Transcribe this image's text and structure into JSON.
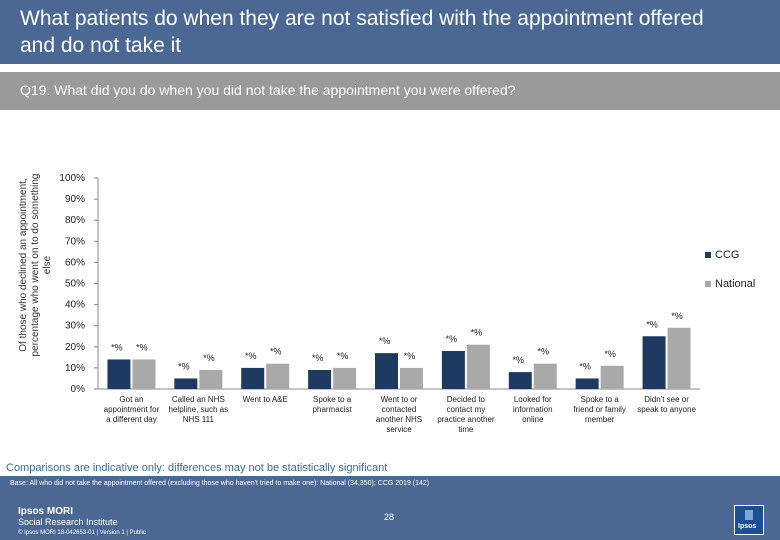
{
  "title": "What patients do when they are not satisfied with the appointment offered and do not take it",
  "question": "Q19. What did you do when you did not take the appointment you were offered?",
  "note": "Comparisons are indicative only: differences may not be statistically significant",
  "base_note": "Base: All who did not take the appointment offered (excluding those who haven't tried to make one): National (34,350); CCG 2019 (142)",
  "footer": {
    "logo_line1": "Ipsos MORI",
    "logo_line2": "Social Research Institute",
    "copyright": "© Ipsos MORI    18-042653-01 | Version 1 | Public",
    "page_number": "28",
    "brand_mark": "Ipsos"
  },
  "colors": {
    "ccg": "#1f3a60",
    "national": "#a9a9a9",
    "header": "#4a6893",
    "question_bar": "#9a9a9a",
    "note_text": "#3a6aa0"
  },
  "chart_data": {
    "type": "bar",
    "ylabel": "Of those who declined an appointment, percentage who went on to do something else",
    "ylim": [
      0,
      100
    ],
    "yticks": [
      "0%",
      "10%",
      "20%",
      "30%",
      "40%",
      "50%",
      "60%",
      "70%",
      "80%",
      "90%",
      "100%"
    ],
    "categories": [
      "Got an appointment for a different day",
      "Called an NHS helpline, such as NHS 111",
      "Went to A&E",
      "Spoke to a pharmacist",
      "Went to or contacted another NHS service",
      "Decided to contact my practice another time",
      "Looked for information online",
      "Spoke to a friend or family member",
      "Didn't see or speak to anyone"
    ],
    "category_lines": [
      [
        "Got an",
        "appointment for",
        "a different day"
      ],
      [
        "Called an NHS",
        "helpline, such as",
        "NHS 111"
      ],
      [
        "Went to A&E"
      ],
      [
        "Spoke to a",
        "pharmacist"
      ],
      [
        "Went to or",
        "contacted",
        "another NHS",
        "service"
      ],
      [
        "Decided to",
        "contact my",
        "practice another",
        "time"
      ],
      [
        "Looked for",
        "information",
        "online"
      ],
      [
        "Spoke to a",
        "friend or family",
        "member"
      ],
      [
        "Didn't see or",
        "speak to anyone"
      ]
    ],
    "series": [
      {
        "name": "CCG",
        "values": [
          14,
          5,
          10,
          9,
          17,
          18,
          8,
          5,
          25
        ],
        "labels": [
          "*%",
          "*%",
          "*%",
          "*%",
          "*%",
          "*%",
          "*%",
          "*%",
          "*%"
        ]
      },
      {
        "name": "National",
        "values": [
          14,
          9,
          12,
          10,
          10,
          21,
          12,
          11,
          29
        ],
        "labels": [
          "*%",
          "*%",
          "*%",
          "*%",
          "*%",
          "*%",
          "*%",
          "*%",
          "*%"
        ]
      }
    ],
    "legend": "right",
    "grid": false
  }
}
